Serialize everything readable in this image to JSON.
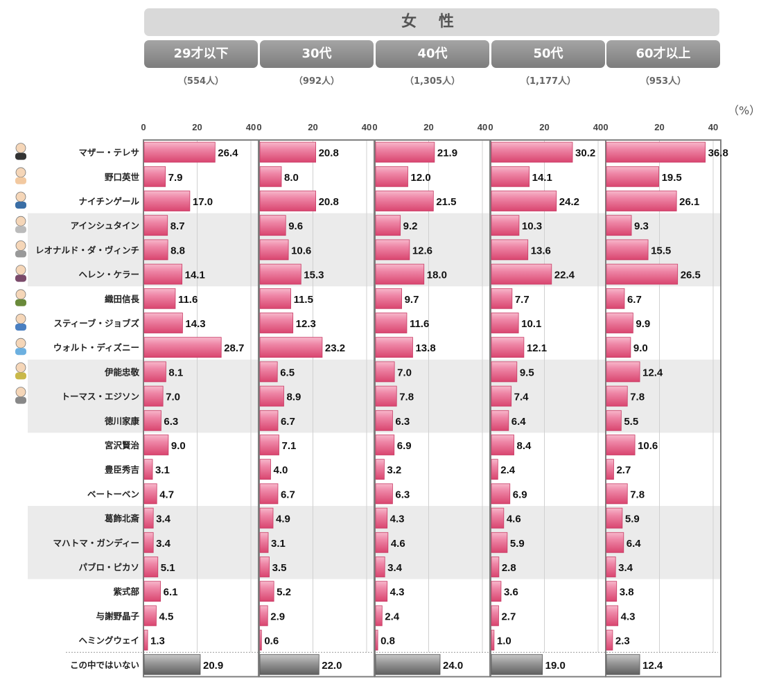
{
  "header": {
    "title": "女 性"
  },
  "unit": "（%）",
  "chart_data": {
    "type": "bar",
    "orientation": "horizontal",
    "xlim": [
      0,
      40
    ],
    "ticks": [
      "0",
      "20",
      "40"
    ],
    "categories": [
      "マザー・テレサ",
      "野口英世",
      "ナイチンゲール",
      "アインシュタイン",
      "レオナルド・ダ・ヴィンチ",
      "ヘレン・ケラー",
      "織田信長",
      "スティーブ・ジョブズ",
      "ウォルト・ディズニー",
      "伊能忠敬",
      "トーマス・エジソン",
      "徳川家康",
      "宮沢賢治",
      "豊臣秀吉",
      "ベートーベン",
      "葛飾北斎",
      "マハトマ・ガンディー",
      "パブロ・ピカソ",
      "紫式部",
      "与謝野晶子",
      "ヘミングウェイ",
      "この中ではいない"
    ],
    "series": [
      {
        "name": "29才以下",
        "count": "（554人）",
        "values": [
          26.4,
          7.9,
          17.0,
          8.7,
          8.8,
          14.1,
          11.6,
          14.3,
          28.7,
          8.1,
          7.0,
          6.3,
          9.0,
          3.1,
          4.7,
          3.4,
          3.4,
          5.1,
          6.1,
          4.5,
          1.3,
          20.9
        ]
      },
      {
        "name": "30代",
        "count": "（992人）",
        "values": [
          20.8,
          8.0,
          20.8,
          9.6,
          10.6,
          15.3,
          11.5,
          12.3,
          23.2,
          6.5,
          8.9,
          6.7,
          7.1,
          4.0,
          6.7,
          4.9,
          3.1,
          3.5,
          5.2,
          2.9,
          0.6,
          22.0
        ]
      },
      {
        "name": "40代",
        "count": "（1,305人）",
        "values": [
          21.9,
          12.0,
          21.5,
          9.2,
          12.6,
          18.0,
          9.7,
          11.6,
          13.8,
          7.0,
          7.8,
          6.3,
          6.9,
          3.2,
          6.3,
          4.3,
          4.6,
          3.4,
          4.3,
          2.4,
          0.8,
          24.0
        ]
      },
      {
        "name": "50代",
        "count": "（1,177人）",
        "values": [
          30.2,
          14.1,
          24.2,
          10.3,
          13.6,
          22.4,
          7.7,
          10.1,
          12.1,
          9.5,
          7.4,
          6.4,
          8.4,
          2.4,
          6.9,
          4.6,
          5.9,
          2.8,
          3.6,
          2.7,
          1.0,
          19.0
        ]
      },
      {
        "name": "60才以上",
        "count": "（953人）",
        "values": [
          36.8,
          19.5,
          26.1,
          9.3,
          15.5,
          26.5,
          6.7,
          9.9,
          9.0,
          12.4,
          7.8,
          5.5,
          10.6,
          2.7,
          7.8,
          5.9,
          6.4,
          3.4,
          3.8,
          4.3,
          2.3,
          12.4
        ]
      }
    ],
    "shaded_row_bands": [
      [
        3,
        5
      ],
      [
        9,
        11
      ],
      [
        15,
        17
      ]
    ],
    "colors": {
      "bar": "#e0557f",
      "bar_light": "#f7b8cb",
      "none_bar": "#7a7a7a",
      "band": "#ebebeb",
      "header_bg": "#d9d9d9",
      "group_bg": "#8c8c8c"
    },
    "icons": [
      "nun-icon",
      "doctor-icon",
      "nurse-icon",
      "scientist-icon",
      "bearded-old-man-icon",
      "woman-icon",
      "samurai-icon",
      "laptop-phone-icon",
      "castle-mascot-icon",
      "surveyor-icon",
      "inventor-icon"
    ]
  }
}
